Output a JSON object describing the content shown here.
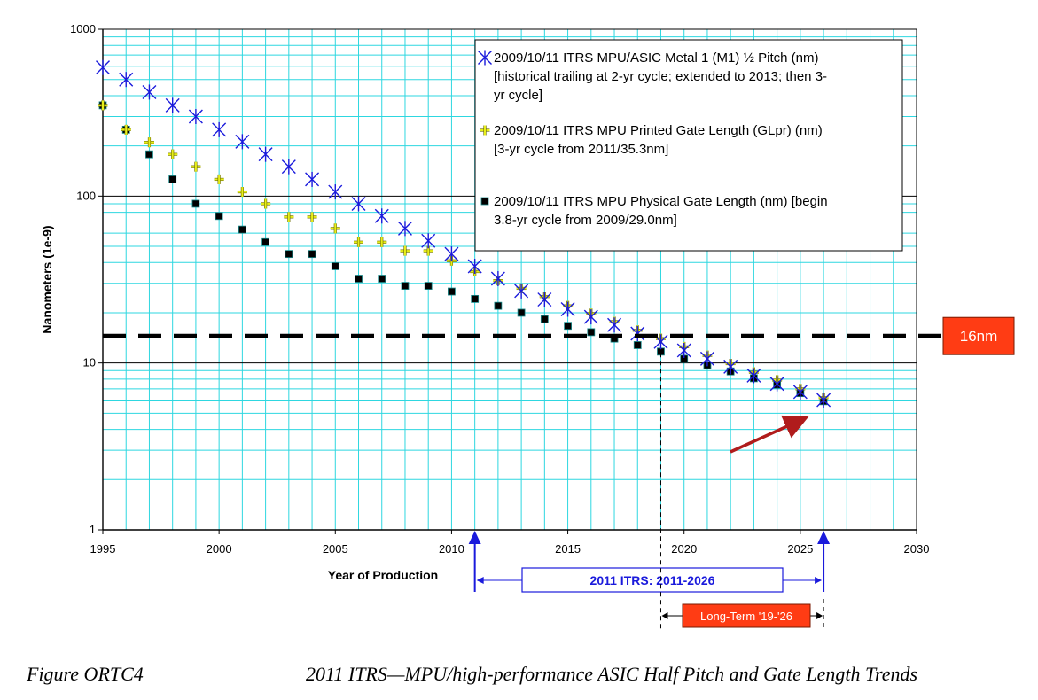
{
  "chart_data": {
    "type": "scatter",
    "ylabel": "Nanometers  (1e-9)",
    "xlabel": "Year of Production",
    "xlim": [
      1995,
      2030
    ],
    "ylim": [
      1,
      1000
    ],
    "yscale": "log",
    "x_ticks": [
      "1995",
      "2000",
      "2005",
      "2010",
      "2015",
      "2020",
      "2025",
      "2030"
    ],
    "y_ticks": [
      {
        "value": 1000,
        "label": "1000"
      },
      {
        "value": 100,
        "label": "100"
      },
      {
        "value": 10,
        "label": "10"
      },
      {
        "value": 1,
        "label": "1"
      }
    ],
    "grid": true,
    "legend_position": "top-right",
    "series": [
      {
        "name": "2009/10/11 ITRS MPU/ASIC Metal 1 (M1) ½ Pitch (nm) [historical trailing at 2-yr cycle; extended to 2013; then 3-yr cycle]",
        "legend_lines": [
          "2009/10/11 ITRS MPU/ASIC Metal 1 (M1) ½ Pitch (nm)",
          "[historical trailing at 2-yr cycle; extended to 2013; then 3-",
          "yr cycle]"
        ],
        "marker": "asterisk",
        "color": "#1a1adc",
        "x": [
          1995,
          1996,
          1997,
          1998,
          1999,
          2000,
          2001,
          2002,
          2003,
          2004,
          2005,
          2006,
          2007,
          2008,
          2009,
          2010,
          2011,
          2012,
          2013,
          2014,
          2015,
          2016,
          2017,
          2018,
          2019,
          2020,
          2021,
          2022,
          2023,
          2024,
          2025,
          2026
        ],
        "y": [
          590,
          500,
          420,
          350,
          300,
          250,
          212,
          178,
          150,
          126,
          106,
          90,
          76,
          64,
          54,
          45,
          38,
          32,
          27,
          24,
          21,
          18.9,
          16.9,
          15,
          13.4,
          11.9,
          10.6,
          9.5,
          8.4,
          7.5,
          6.7,
          6
        ]
      },
      {
        "name": "2009/10/11 ITRS MPU Printed Gate Length (GLpr) (nm) [3-yr cycle from 2011/35.3nm]",
        "legend_lines": [
          "2009/10/11 ITRS MPU Printed Gate Length  (GLpr) (nm)",
          "[3-yr cycle from 2011/35.3nm]"
        ],
        "marker": "plus",
        "color": "#e8ef1a",
        "x": [
          1995,
          1996,
          1997,
          1998,
          1999,
          2000,
          2001,
          2002,
          2003,
          2004,
          2005,
          2006,
          2007,
          2008,
          2009,
          2010,
          2011,
          2012,
          2013,
          2014,
          2015,
          2016,
          2017,
          2018,
          2019,
          2020,
          2021,
          2022,
          2023,
          2024,
          2025,
          2026
        ],
        "y": [
          350,
          250,
          210,
          178,
          150,
          126,
          106,
          90,
          75,
          75,
          64,
          53,
          53,
          47,
          47,
          41,
          35.3,
          31.2,
          28,
          25,
          22,
          19.8,
          17.7,
          15.7,
          14,
          12.5,
          11.1,
          9.9,
          8.8,
          7.9,
          7,
          6.2
        ]
      },
      {
        "name": "2009/10/11 ITRS MPU Physical Gate Length (nm) [begin 3.8-yr cycle from 2009/29.0nm]",
        "legend_lines": [
          "2009/10/11 ITRS MPU Physical Gate Length (nm) [begin",
          "3.8-yr cycle from 2009/29.0nm]"
        ],
        "marker": "square",
        "color": "#000000",
        "x": [
          1995,
          1996,
          1997,
          1998,
          1999,
          2000,
          2001,
          2002,
          2003,
          2004,
          2005,
          2006,
          2007,
          2008,
          2009,
          2010,
          2011,
          2012,
          2013,
          2014,
          2015,
          2016,
          2017,
          2018,
          2019,
          2020,
          2021,
          2022,
          2023,
          2024,
          2025,
          2026
        ],
        "y": [
          350,
          250,
          178,
          126,
          90,
          76,
          63,
          53,
          45,
          45,
          38,
          32,
          32,
          29,
          29,
          26.8,
          24.2,
          22,
          20,
          18.3,
          16.7,
          15.3,
          14,
          12.8,
          11.7,
          10.6,
          9.7,
          8.9,
          8.1,
          7.4,
          6.6,
          5.9
        ]
      }
    ],
    "annotations": {
      "threshold_value": 16,
      "threshold_label": "16nm",
      "range_label": "2011 ITRS:  2011-2026",
      "range_years": [
        2011,
        2026
      ],
      "longterm_label": "Long-Term  '19-'26",
      "longterm_years": [
        2019,
        2026
      ]
    }
  },
  "caption": {
    "label": "Figure ORTC4",
    "title": "2011 ITRS—MPU/high-performance ASIC Half Pitch and Gate Length Trends"
  },
  "colors": {
    "grid": "#2ed7e0",
    "callout": "#ff3c14",
    "arrow": "#b01c1c",
    "range_line": "#1a1adc"
  }
}
